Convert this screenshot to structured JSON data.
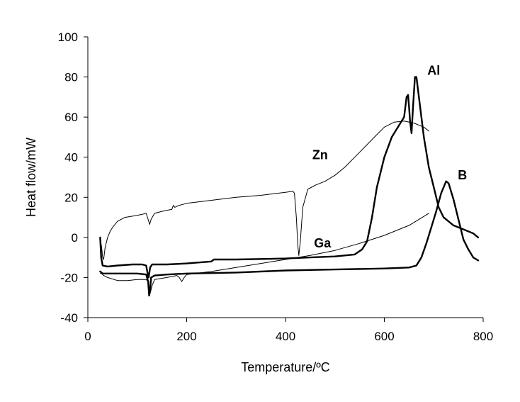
{
  "chart_data": {
    "type": "line",
    "title": "",
    "xlabel": "Temperature/ºC",
    "ylabel": "Heat flow/mW",
    "xlim": [
      0,
      800
    ],
    "ylim": [
      -40,
      100
    ],
    "xticks": [
      0,
      200,
      400,
      600,
      800
    ],
    "yticks": [
      -40,
      -20,
      0,
      20,
      40,
      60,
      80,
      100
    ],
    "grid": false,
    "legend": "none",
    "series": [
      {
        "name": "Zn",
        "label_at": [
          470,
          39
        ],
        "style": "thin",
        "points": [
          [
            25,
            0
          ],
          [
            28,
            -5
          ],
          [
            30,
            -10
          ],
          [
            32,
            -11
          ],
          [
            35,
            -5
          ],
          [
            40,
            0
          ],
          [
            45,
            3
          ],
          [
            50,
            5
          ],
          [
            60,
            8
          ],
          [
            75,
            10
          ],
          [
            100,
            11
          ],
          [
            110,
            11.5
          ],
          [
            118,
            12
          ],
          [
            122,
            9
          ],
          [
            125,
            6.5
          ],
          [
            128,
            9
          ],
          [
            135,
            12
          ],
          [
            150,
            13
          ],
          [
            170,
            14
          ],
          [
            173,
            16
          ],
          [
            176,
            15
          ],
          [
            185,
            16
          ],
          [
            200,
            17
          ],
          [
            250,
            18.5
          ],
          [
            300,
            20
          ],
          [
            350,
            21
          ],
          [
            400,
            22.5
          ],
          [
            415,
            23
          ],
          [
            418,
            22
          ],
          [
            422,
            10
          ],
          [
            425,
            -4
          ],
          [
            427,
            -9
          ],
          [
            430,
            -2
          ],
          [
            435,
            15
          ],
          [
            445,
            24
          ],
          [
            460,
            26
          ],
          [
            480,
            28
          ],
          [
            500,
            31
          ],
          [
            520,
            35
          ],
          [
            540,
            40
          ],
          [
            560,
            45
          ],
          [
            580,
            50
          ],
          [
            600,
            55
          ],
          [
            620,
            57.5
          ],
          [
            640,
            58
          ],
          [
            660,
            57
          ],
          [
            680,
            55
          ],
          [
            690,
            53
          ]
        ]
      },
      {
        "name": "Al",
        "label_at": [
          700,
          81
        ],
        "style": "thick",
        "points": [
          [
            25,
            0
          ],
          [
            27,
            -10
          ],
          [
            30,
            -14
          ],
          [
            40,
            -14.5
          ],
          [
            60,
            -14
          ],
          [
            90,
            -13.5
          ],
          [
            110,
            -13.5
          ],
          [
            118,
            -14
          ],
          [
            121,
            -18
          ],
          [
            123,
            -20
          ],
          [
            126,
            -15
          ],
          [
            130,
            -13.5
          ],
          [
            160,
            -13.5
          ],
          [
            200,
            -13
          ],
          [
            250,
            -12
          ],
          [
            255,
            -11
          ],
          [
            300,
            -11
          ],
          [
            400,
            -10.5
          ],
          [
            450,
            -10
          ],
          [
            500,
            -9.5
          ],
          [
            540,
            -8.5
          ],
          [
            555,
            -6
          ],
          [
            565,
            -2
          ],
          [
            575,
            10
          ],
          [
            585,
            25
          ],
          [
            600,
            40
          ],
          [
            615,
            50
          ],
          [
            630,
            56
          ],
          [
            640,
            60
          ],
          [
            645,
            70
          ],
          [
            648,
            71
          ],
          [
            650,
            65
          ],
          [
            652,
            58
          ],
          [
            655,
            52
          ],
          [
            658,
            65
          ],
          [
            662,
            80
          ],
          [
            665,
            80
          ],
          [
            670,
            70
          ],
          [
            680,
            50
          ],
          [
            690,
            35
          ],
          [
            700,
            25
          ],
          [
            710,
            15
          ],
          [
            720,
            10
          ],
          [
            740,
            6
          ],
          [
            760,
            4
          ],
          [
            780,
            2
          ],
          [
            790,
            0
          ]
        ]
      },
      {
        "name": "Ga",
        "label_at": [
          475,
          -5
        ],
        "style": "thin",
        "points": [
          [
            25,
            -18
          ],
          [
            28,
            -18
          ],
          [
            32,
            -19
          ],
          [
            40,
            -20
          ],
          [
            60,
            -21.5
          ],
          [
            80,
            -21.5
          ],
          [
            100,
            -21
          ],
          [
            118,
            -21
          ],
          [
            122,
            -22
          ],
          [
            126,
            -28
          ],
          [
            130,
            -24
          ],
          [
            135,
            -21
          ],
          [
            160,
            -20
          ],
          [
            180,
            -19
          ],
          [
            185,
            -20
          ],
          [
            190,
            -22
          ],
          [
            195,
            -20
          ],
          [
            200,
            -18.5
          ],
          [
            250,
            -17
          ],
          [
            300,
            -15
          ],
          [
            350,
            -13
          ],
          [
            400,
            -11
          ],
          [
            450,
            -9
          ],
          [
            500,
            -6.5
          ],
          [
            550,
            -3
          ],
          [
            600,
            1
          ],
          [
            650,
            6
          ],
          [
            690,
            12
          ]
        ]
      },
      {
        "name": "B",
        "label_at": [
          758,
          29
        ],
        "style": "thick",
        "points": [
          [
            25,
            -17
          ],
          [
            30,
            -18
          ],
          [
            40,
            -18
          ],
          [
            100,
            -18
          ],
          [
            118,
            -18.5
          ],
          [
            122,
            -22
          ],
          [
            124,
            -29
          ],
          [
            126,
            -26
          ],
          [
            128,
            -20
          ],
          [
            135,
            -19
          ],
          [
            160,
            -18.5
          ],
          [
            200,
            -18
          ],
          [
            300,
            -17.5
          ],
          [
            400,
            -16.5
          ],
          [
            500,
            -16
          ],
          [
            600,
            -15.5
          ],
          [
            650,
            -15
          ],
          [
            665,
            -14
          ],
          [
            675,
            -10
          ],
          [
            685,
            -3
          ],
          [
            695,
            5
          ],
          [
            705,
            13
          ],
          [
            715,
            22
          ],
          [
            725,
            28
          ],
          [
            730,
            27
          ],
          [
            740,
            19
          ],
          [
            750,
            9
          ],
          [
            760,
            -1
          ],
          [
            770,
            -6
          ],
          [
            780,
            -10
          ],
          [
            790,
            -11.5
          ]
        ]
      }
    ]
  }
}
